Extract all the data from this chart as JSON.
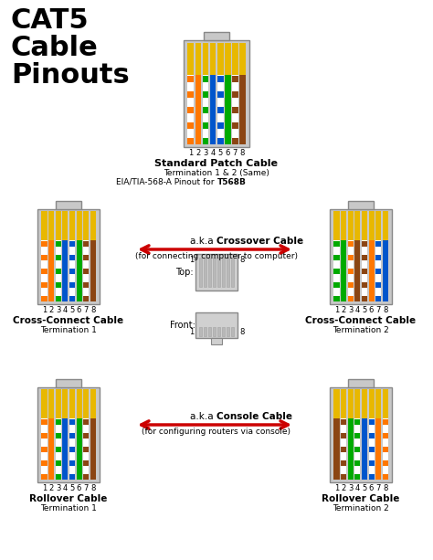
{
  "bg_color": "#ffffff",
  "title": "CAT5\nCable\nPinouts",
  "title_fontsize": 22,
  "patch_title": "Standard Patch Cable",
  "patch_sub1": "Termination 1 & 2 (Same)",
  "patch_sub2": "EIA/TIA-568-A Pinout for ",
  "patch_sub2b": "T568B",
  "cross_left_title": "Cross-Connect Cable",
  "cross_left_sub": "Termination 1",
  "cross_right_title": "Cross-Connect Cable",
  "cross_right_sub": "Termination 2",
  "roll_left_title": "Rollover Cable",
  "roll_left_sub": "Termination 1",
  "roll_right_title": "Rollover Cable",
  "roll_right_sub": "Termination 2",
  "crossover_label": "a.k.a Crossover Cable",
  "crossover_sub": "(for connecting computer to computer)",
  "console_label": "a.k.a Console Cable",
  "console_sub": "(for configuring routers via console)",
  "arrow_color": "#cc0000",
  "connector_body": "#c8c8c8",
  "connector_border": "#888888",
  "connector_tab": "#c8c8c8",
  "pin_gold": "#e8b800",
  "wire_gap_color": "#aaaaaa",
  "t568b_wires": [
    {
      "base": "#ffffff",
      "stripe": "#ff7700"
    },
    {
      "base": "#ff7700",
      "stripe": null
    },
    {
      "base": "#ffffff",
      "stripe": "#00aa00"
    },
    {
      "base": "#0055cc",
      "stripe": null
    },
    {
      "base": "#ffffff",
      "stripe": "#0055cc"
    },
    {
      "base": "#00aa00",
      "stripe": null
    },
    {
      "base": "#ffffff",
      "stripe": "#8b4513"
    },
    {
      "base": "#8b4513",
      "stripe": null
    }
  ],
  "cross_right_wires": [
    {
      "base": "#ffffff",
      "stripe": "#00aa00"
    },
    {
      "base": "#00aa00",
      "stripe": null
    },
    {
      "base": "#ffffff",
      "stripe": "#ff7700"
    },
    {
      "base": "#8b4513",
      "stripe": null
    },
    {
      "base": "#ffffff",
      "stripe": "#8b4513"
    },
    {
      "base": "#ff7700",
      "stripe": null
    },
    {
      "base": "#ffffff",
      "stripe": "#0055cc"
    },
    {
      "base": "#0055cc",
      "stripe": null
    }
  ],
  "rollover_right_wires": [
    {
      "base": "#8b4513",
      "stripe": null
    },
    {
      "base": "#ffffff",
      "stripe": "#8b4513"
    },
    {
      "base": "#00aa00",
      "stripe": null
    },
    {
      "base": "#ffffff",
      "stripe": "#00aa00"
    },
    {
      "base": "#0055cc",
      "stripe": null
    },
    {
      "base": "#ffffff",
      "stripe": "#0055cc"
    },
    {
      "base": "#ff7700",
      "stripe": null
    },
    {
      "base": "#ffffff",
      "stripe": "#ff7700"
    }
  ]
}
